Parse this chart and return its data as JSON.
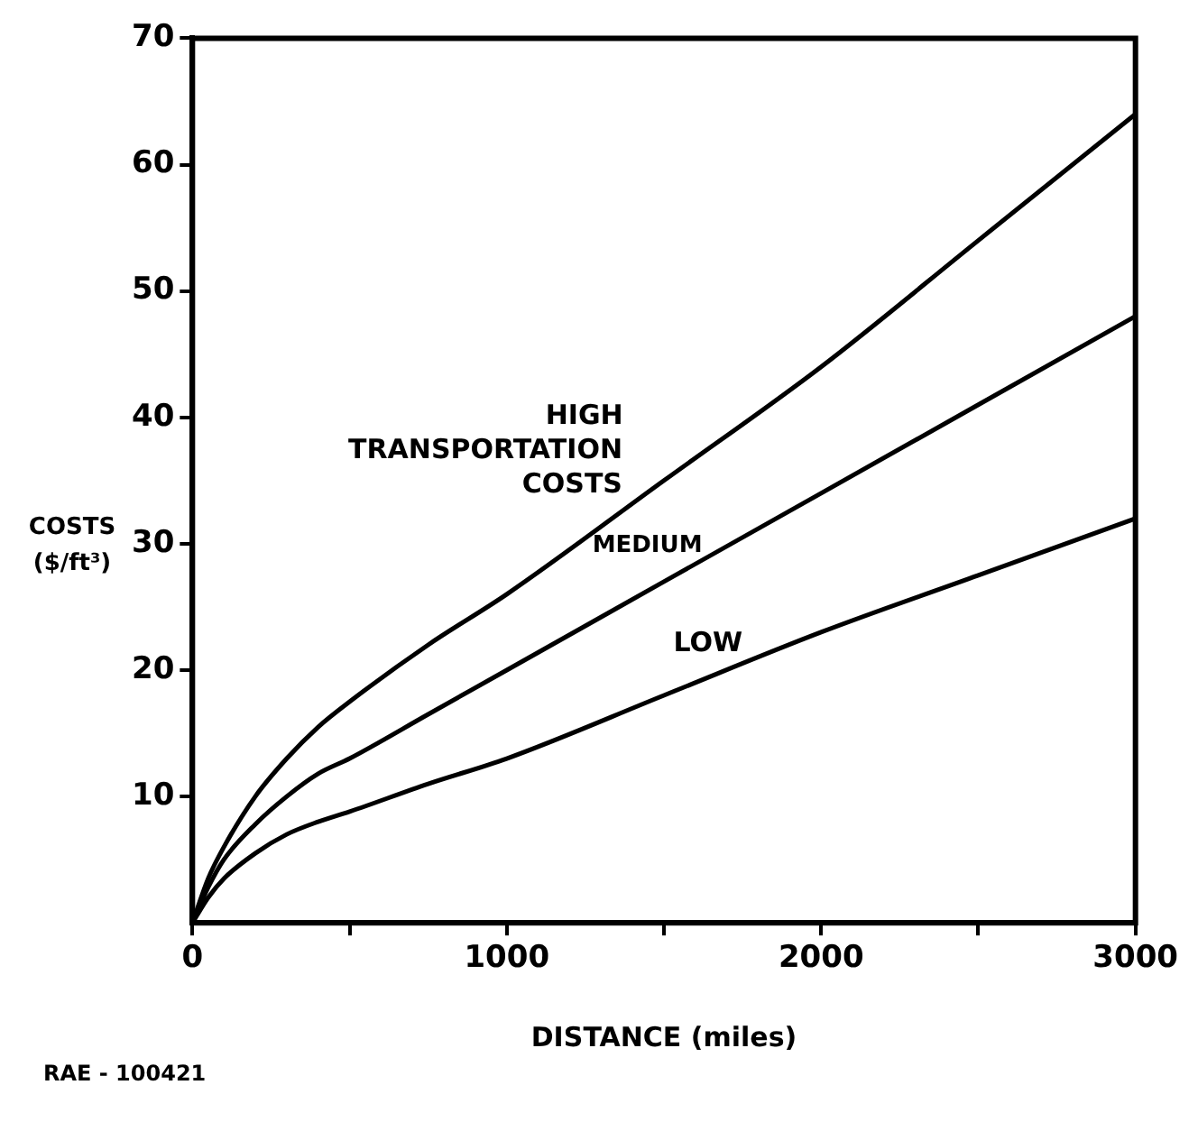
{
  "chart_data": {
    "type": "line",
    "xlabel": "DISTANCE (miles)",
    "ylabel": "COSTS ($/ft³)",
    "annotations": [
      "TRANSPORTATION COSTS",
      "RAE - 100421"
    ],
    "x": [
      0,
      50,
      100,
      200,
      300,
      400,
      500,
      750,
      1000,
      1500,
      2000,
      2500,
      3000
    ],
    "series": [
      {
        "name": "HIGH",
        "color": "#000000",
        "values": [
          0,
          3.5,
          6,
          10,
          13,
          15.5,
          17.5,
          22,
          26,
          35,
          44,
          54,
          64
        ]
      },
      {
        "name": "MEDIUM",
        "color": "#000000",
        "values": [
          0,
          2.8,
          5,
          7.8,
          10,
          11.8,
          13,
          16.5,
          20,
          27,
          34,
          41,
          48
        ]
      },
      {
        "name": "LOW",
        "color": "#000000",
        "values": [
          0,
          2,
          3.5,
          5.5,
          7,
          8,
          8.8,
          11,
          13,
          18,
          23,
          27.5,
          32
        ]
      }
    ],
    "xlim": [
      0,
      3000
    ],
    "ylim": [
      0,
      70
    ],
    "xticks": [
      0,
      {
        "value": 500,
        "label": null
      },
      1000,
      {
        "value": 1500,
        "label": null
      },
      2000,
      {
        "value": 2500,
        "label": null
      },
      3000
    ],
    "yticks": [
      10,
      20,
      30,
      40,
      50,
      60,
      70
    ],
    "marker": "none",
    "line_style": "solid",
    "legend": false
  }
}
